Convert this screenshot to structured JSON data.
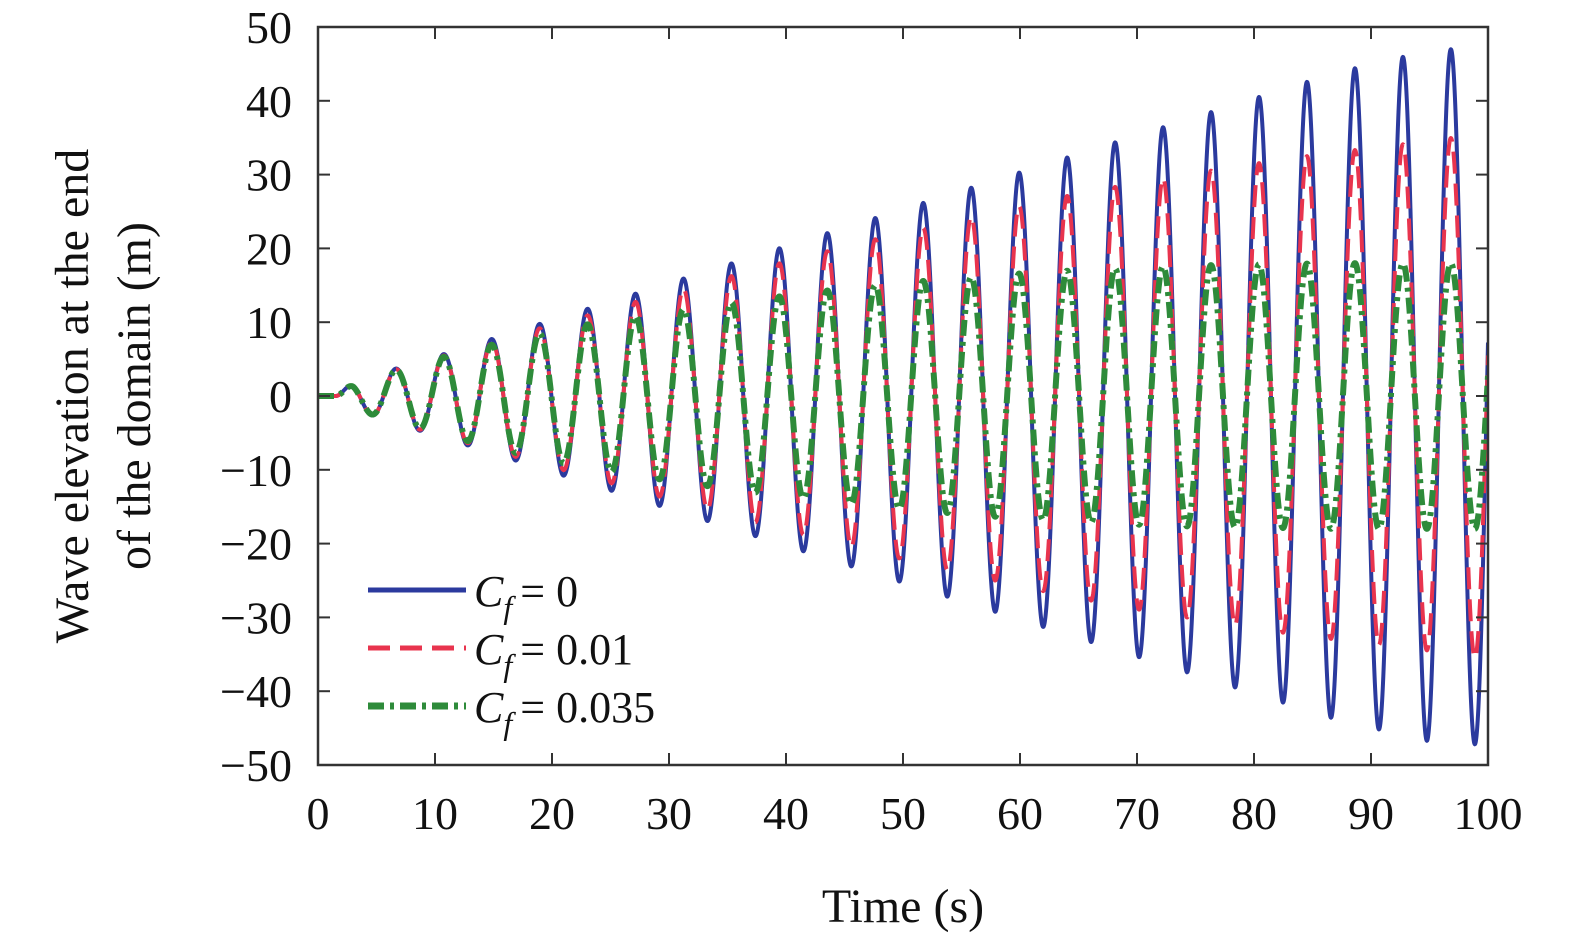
{
  "chart_data": {
    "type": "line",
    "title": "",
    "xlabel": "Time (s)",
    "ylabel_lines": [
      "Wave elevation at the end",
      "of the domain (m)"
    ],
    "xlim": [
      0,
      100
    ],
    "ylim": [
      -50,
      50
    ],
    "x_ticks": [
      0,
      10,
      20,
      30,
      40,
      50,
      60,
      70,
      80,
      90,
      100
    ],
    "y_ticks": [
      50,
      40,
      30,
      20,
      10,
      0,
      -10,
      -20,
      -30,
      -40,
      -50
    ],
    "x_tick_labels": [
      "0",
      "10",
      "20",
      "30",
      "40",
      "50",
      "60",
      "70",
      "80",
      "90",
      "100"
    ],
    "y_tick_labels": [
      "50",
      "40",
      "30",
      "20",
      "10",
      "0",
      "−10",
      "−20",
      "−30",
      "−40",
      "−50"
    ],
    "grid": false,
    "legend_position": "bottom-left",
    "wave_period_s": 4.1,
    "wave_onset_s": 1.5,
    "series": [
      {
        "name": "Cf = 0",
        "legend_var": "C",
        "legend_sub": "f",
        "legend_value": "= 0",
        "color": "#2b3a9e",
        "dash": "solid",
        "envelope": {
          "t": [
            1.5,
            3,
            7,
            11,
            15,
            19,
            23,
            27,
            31,
            35,
            39,
            43,
            47,
            51,
            55,
            59,
            63,
            67,
            71,
            75,
            79,
            83,
            87,
            91,
            95,
            99,
            100
          ],
          "a": [
            0,
            1.8,
            3.9,
            5.8,
            7.8,
            9.8,
            11.8,
            13.8,
            15.8,
            17.8,
            19.8,
            21.8,
            23.8,
            25.8,
            27.8,
            29.8,
            31.8,
            33.8,
            35.8,
            37.8,
            39.8,
            41.8,
            43.8,
            45.3,
            46.8,
            47.2,
            47.5
          ]
        }
      },
      {
        "name": "Cf = 0.01",
        "legend_var": "C",
        "legend_sub": "f",
        "legend_value": "= 0.01",
        "color": "#e8344e",
        "dash": "dashed",
        "envelope": {
          "t": [
            1.5,
            3,
            7,
            11,
            15,
            19,
            23,
            27,
            31,
            35,
            39,
            43,
            47,
            51,
            55,
            59,
            63,
            67,
            71,
            75,
            79,
            83,
            87,
            91,
            95,
            99,
            100
          ],
          "a": [
            0,
            1.8,
            3.8,
            5.6,
            7.4,
            9.2,
            10.9,
            12.7,
            14.4,
            16.1,
            17.8,
            19.4,
            21.0,
            22.5,
            24.0,
            25.4,
            26.8,
            28.0,
            29.2,
            30.2,
            31.2,
            32.2,
            33.0,
            33.8,
            34.5,
            35.5,
            36
          ]
        }
      },
      {
        "name": "Cf = 0.035",
        "legend_var": "C",
        "legend_sub": "f",
        "legend_value": "= 0.035",
        "color": "#2e8b3a",
        "dash": "dashdot",
        "envelope": {
          "t": [
            1.5,
            3,
            7,
            11,
            15,
            19,
            23,
            27,
            31,
            35,
            39,
            43,
            47,
            51,
            55,
            59,
            63,
            67,
            71,
            75,
            79,
            83,
            87,
            91,
            95,
            99,
            100
          ],
          "a": [
            0,
            1.7,
            3.7,
            5.4,
            7.0,
            8.5,
            9.7,
            10.8,
            11.7,
            12.6,
            13.4,
            14.2,
            14.9,
            15.5,
            16.0,
            16.5,
            16.9,
            17.2,
            17.5,
            17.7,
            17.8,
            17.9,
            18.0,
            18.0,
            18.0,
            18.0,
            18.0
          ]
        }
      }
    ]
  }
}
